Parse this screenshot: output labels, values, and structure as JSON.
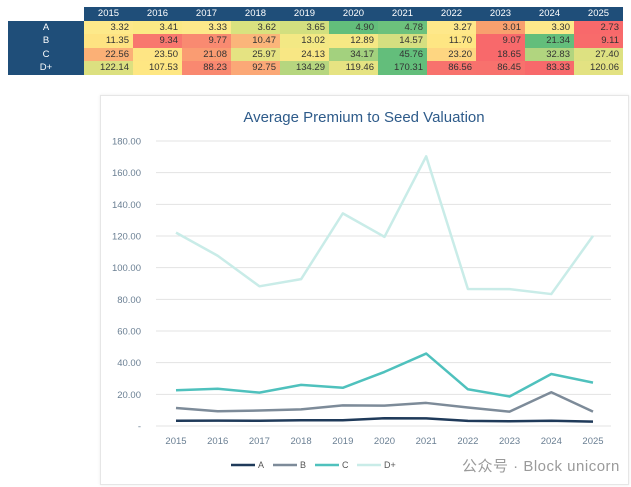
{
  "table": {
    "years": [
      "2015",
      "2016",
      "2017",
      "2018",
      "2019",
      "2020",
      "2021",
      "2022",
      "2023",
      "2024",
      "2025"
    ],
    "rows": [
      {
        "label": "A",
        "values": [
          "3.32",
          "3.41",
          "3.33",
          "3.62",
          "3.65",
          "4.90",
          "4.78",
          "3.27",
          "3.01",
          "3.30",
          "2.73"
        ],
        "colors": [
          "#fde98a",
          "#fbe985",
          "#fde98a",
          "#d9e27f",
          "#d2df7f",
          "#63be7b",
          "#6cc17c",
          "#fee88a",
          "#f8a06e",
          "#fde98a",
          "#f8696b"
        ]
      },
      {
        "label": "B",
        "values": [
          "11.35",
          "9.34",
          "9.77",
          "10.47",
          "13.02",
          "12.89",
          "14.57",
          "11.70",
          "9.07",
          "21.34",
          "9.11"
        ],
        "colors": [
          "#fee382",
          "#f8776e",
          "#f98a71",
          "#fbb57a",
          "#f3e884",
          "#f6e884",
          "#d5df80",
          "#fee683",
          "#f8696b",
          "#63be7b",
          "#f86b6b"
        ]
      },
      {
        "label": "C",
        "values": [
          "22.56",
          "23.50",
          "21.08",
          "25.97",
          "24.13",
          "34.17",
          "45.76",
          "23.20",
          "18.65",
          "32.83",
          "27.40"
        ],
        "colors": [
          "#fbb076",
          "#fee584",
          "#fa9c72",
          "#e5e382",
          "#f8e784",
          "#a3d17e",
          "#63be7b",
          "#fed681",
          "#f8696b",
          "#b1d57f",
          "#dde181"
        ]
      },
      {
        "label": "D+",
        "values": [
          "122.14",
          "107.53",
          "88.23",
          "92.75",
          "134.29",
          "119.46",
          "170.31",
          "86.56",
          "86.45",
          "83.33",
          "120.06"
        ],
        "colors": [
          "#dce080",
          "#fee783",
          "#f98870",
          "#fba877",
          "#b6d67f",
          "#e6e382",
          "#63be7b",
          "#f8726d",
          "#f8716d",
          "#f8696b",
          "#e3e282"
        ]
      }
    ]
  },
  "chart_data": {
    "type": "line",
    "title": "Average Premium to Seed Valuation",
    "x": [
      "2015",
      "2016",
      "2017",
      "2018",
      "2019",
      "2020",
      "2021",
      "2022",
      "2023",
      "2024",
      "2025"
    ],
    "ylim": [
      0,
      180
    ],
    "yticks": [
      "-",
      "20.00",
      "40.00",
      "60.00",
      "80.00",
      "100.00",
      "120.00",
      "140.00",
      "160.00",
      "180.00"
    ],
    "grid": true,
    "legend_position": "bottom",
    "series": [
      {
        "name": "A",
        "color": "#1f3a5a",
        "values": [
          3.32,
          3.41,
          3.33,
          3.62,
          3.65,
          4.9,
          4.78,
          3.27,
          3.01,
          3.3,
          2.73
        ]
      },
      {
        "name": "B",
        "color": "#7d8b99",
        "values": [
          11.35,
          9.34,
          9.77,
          10.47,
          13.02,
          12.89,
          14.57,
          11.7,
          9.07,
          21.34,
          9.11
        ]
      },
      {
        "name": "C",
        "color": "#4fc1bd",
        "values": [
          22.56,
          23.5,
          21.08,
          25.97,
          24.13,
          34.17,
          45.76,
          23.2,
          18.65,
          32.83,
          27.4
        ]
      },
      {
        "name": "D+",
        "color": "#c9ece8",
        "values": [
          122.14,
          107.53,
          88.23,
          92.75,
          134.29,
          119.46,
          170.31,
          86.56,
          86.45,
          83.33,
          120.06
        ]
      }
    ]
  },
  "watermark": "公众号 · Block unicorn"
}
